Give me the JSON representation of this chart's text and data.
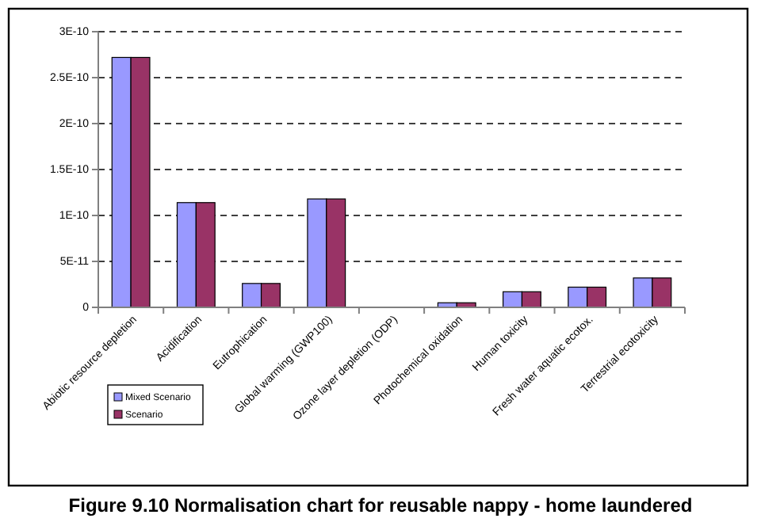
{
  "chart_data": {
    "type": "bar",
    "title": "Figure 9.10   Normalisation chart for reusable nappy - home laundered",
    "categories": [
      "Abiotic resource depletion",
      "Acidification",
      "Eutrophication",
      "Global warming (GWP100)",
      "Ozone layer depletion (ODP)",
      "Photochemical oxidation",
      "Human toxicity",
      "Fresh water aquatic ecotox.",
      "Terrestrial ecotoxicity"
    ],
    "series": [
      {
        "name": "Mixed Scenario",
        "color": "#9999ff",
        "values": [
          2.72e-10,
          1.14e-10,
          2.6e-11,
          1.18e-10,
          0,
          5e-12,
          1.7e-11,
          2.2e-11,
          3.2e-11
        ]
      },
      {
        "name": "Scenario",
        "color": "#993366",
        "values": [
          2.72e-10,
          1.14e-10,
          2.6e-11,
          1.18e-10,
          0,
          5e-12,
          1.7e-11,
          2.2e-11,
          3.2e-11
        ]
      }
    ],
    "ylim": [
      0,
      3e-10
    ],
    "yticks": [
      {
        "value": 0,
        "label": "0"
      },
      {
        "value": 5e-11,
        "label": "5E-11"
      },
      {
        "value": 1e-10,
        "label": "1E-10"
      },
      {
        "value": 1.5e-10,
        "label": "1.5E-10"
      },
      {
        "value": 2e-10,
        "label": "2E-10"
      },
      {
        "value": 2.5e-10,
        "label": "2.5E-10"
      },
      {
        "value": 3e-10,
        "label": "3E-10"
      }
    ],
    "grid": "y",
    "legend": "bottom left"
  }
}
